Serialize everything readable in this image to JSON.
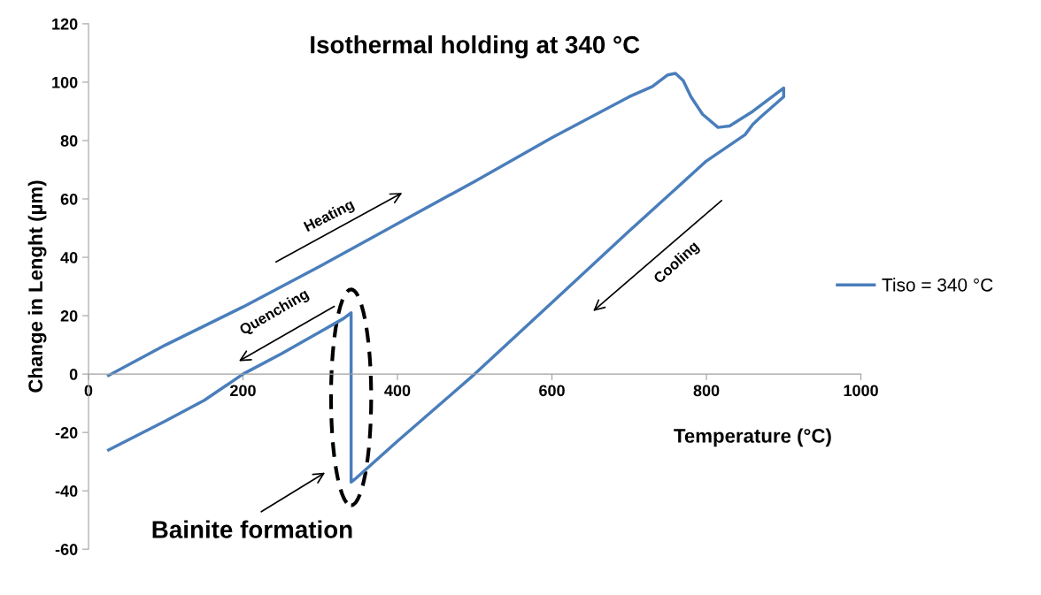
{
  "chart_data": {
    "type": "line",
    "title": "Isothermal holding at 340 °C",
    "xlabel": "Temperature (°C)",
    "ylabel": "Change in Lenght (µm)",
    "series": [
      {
        "name": "Tiso = 340 °C",
        "color": "#4a7ebb",
        "x": [
          26,
          100,
          200,
          300,
          400,
          500,
          600,
          700,
          730,
          750,
          760,
          770,
          780,
          795,
          815,
          830,
          860,
          900,
          900,
          870,
          860,
          850,
          800,
          700,
          600,
          500,
          400,
          345,
          340,
          340,
          330,
          300,
          250,
          200,
          150,
          100,
          26
        ],
        "values": [
          -0.5,
          10,
          23,
          37,
          51.5,
          66,
          81,
          95,
          98.5,
          102.5,
          103,
          100.5,
          95,
          89,
          84.5,
          85,
          90,
          98,
          95,
          88,
          85.5,
          82,
          73,
          49,
          24.5,
          0,
          -23,
          -36,
          -37,
          21,
          19,
          14.5,
          7,
          0,
          -9,
          -16,
          -26
        ]
      }
    ],
    "xlim": [
      0,
      1000
    ],
    "xticks": [
      0,
      200,
      400,
      600,
      800,
      1000
    ],
    "ylim": [
      -60,
      120
    ],
    "yticks": [
      -60,
      -40,
      -20,
      0,
      20,
      40,
      60,
      80,
      100,
      120
    ],
    "grid": false,
    "legend": "right",
    "marker": "none",
    "line_style": "solid",
    "annotations": [
      "Heating",
      "Cooling",
      "Quenching",
      "Bainite formation"
    ]
  }
}
